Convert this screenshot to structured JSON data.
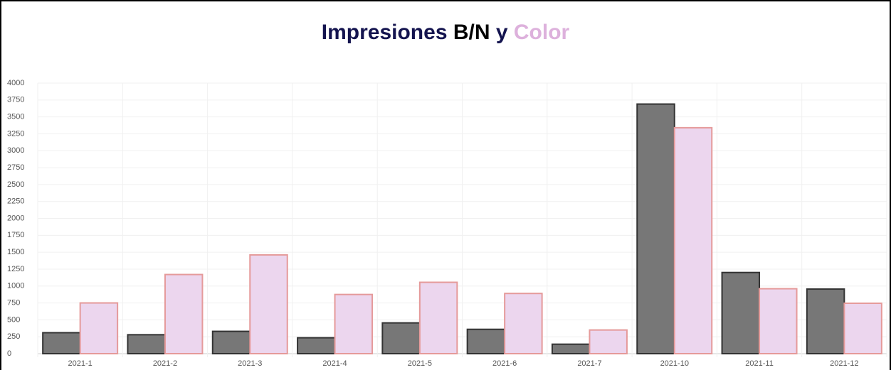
{
  "chart_data": {
    "type": "bar",
    "title": [
      "Impresiones",
      "y"
    ],
    "title_colors": [
      "#14144f",
      "#14144f"
    ],
    "categories": [
      "2021-1",
      "2021-2",
      "2021-3",
      "2021-4",
      "2021-5",
      "2021-6",
      "2021-7",
      "2021-10",
      "2021-11",
      "2021-12"
    ],
    "series": [
      {
        "name": "B/N",
        "color": "#777777",
        "border": "#333333",
        "title_color": "#000000",
        "values": [
          310,
          280,
          330,
          235,
          455,
          360,
          140,
          3690,
          1200,
          955
        ]
      },
      {
        "name": "Color",
        "color": "#ecd6ee",
        "border": "#e59a9a",
        "title_color": "#ddb1dc",
        "values": [
          750,
          1170,
          1460,
          875,
          1055,
          890,
          350,
          3340,
          960,
          745
        ]
      }
    ],
    "ylim": [
      0,
      4000
    ],
    "yticks": [
      0,
      250,
      500,
      750,
      1000,
      1250,
      1500,
      1750,
      2000,
      2250,
      2500,
      2750,
      3000,
      3250,
      3500,
      3750,
      4000
    ],
    "grid": true
  }
}
